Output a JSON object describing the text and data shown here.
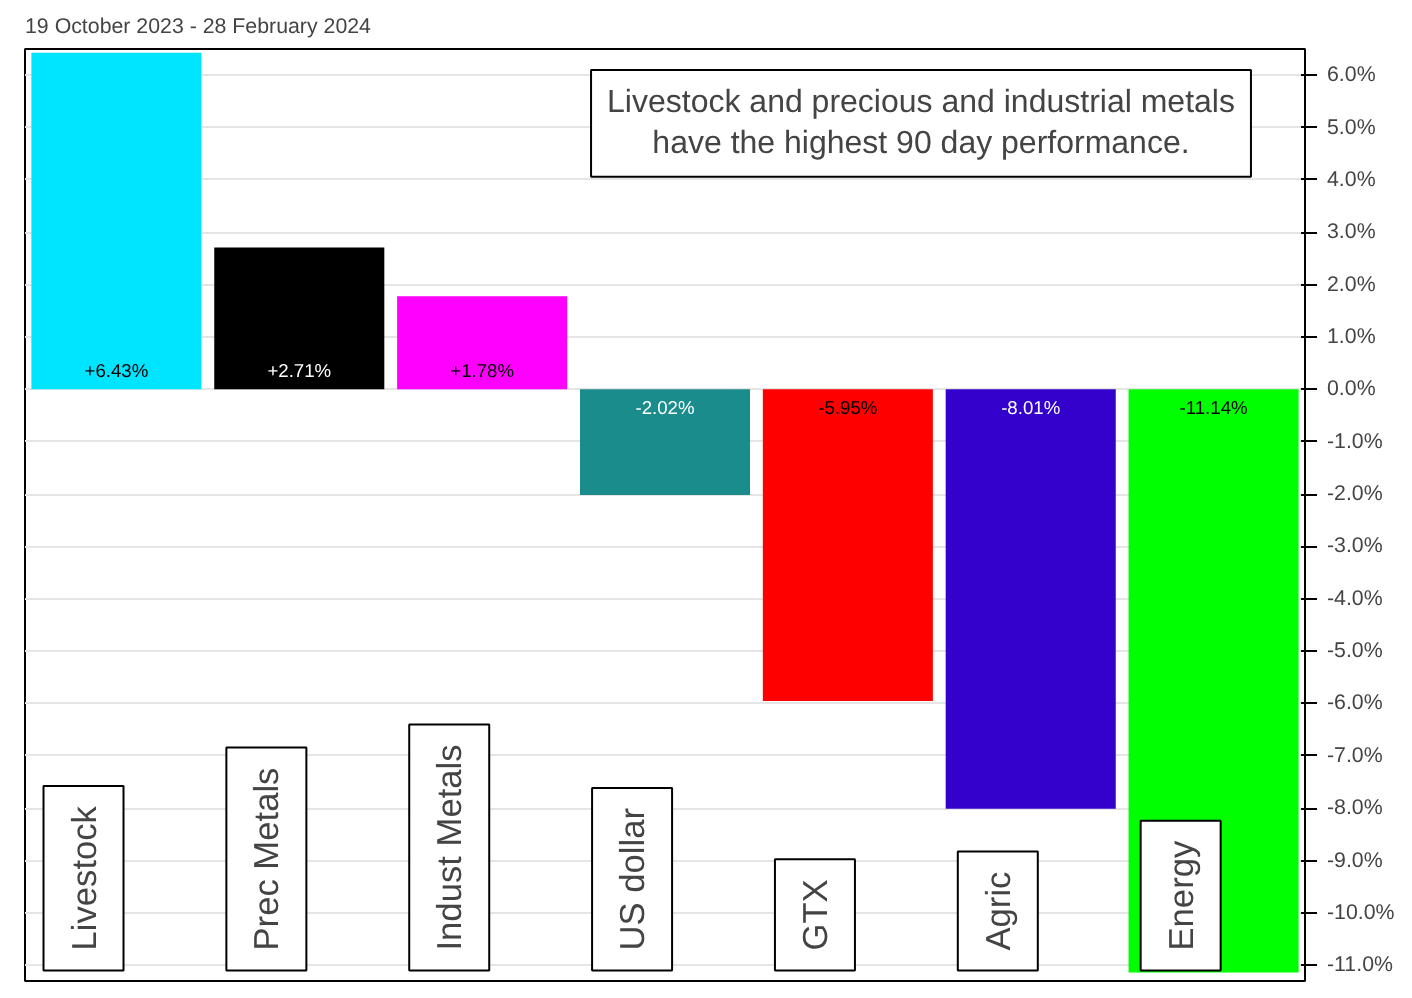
{
  "chart_data": {
    "type": "bar",
    "subtitle": "19 October 2023 - 28 February 2024",
    "categories": [
      "Livestock",
      "Prec Metals",
      "Indust Metals",
      "US dollar",
      "GTX",
      "Agric",
      "Energy"
    ],
    "values": [
      6.43,
      2.71,
      1.78,
      -2.02,
      -5.95,
      -8.01,
      -11.14
    ],
    "colors": [
      "#00e5ff",
      "#000000",
      "#ff00ff",
      "#1a8c8c",
      "#ff0000",
      "#3300cc",
      "#00ff00"
    ],
    "value_labels": [
      "+6.43%",
      "+2.71%",
      "+1.78%",
      "-2.02%",
      "-5.95%",
      "-8.01%",
      "-11.14%"
    ],
    "ylim": [
      -11.3,
      6.5
    ],
    "yticks": [
      {
        "value": 6,
        "label": "6.0%"
      },
      {
        "value": 5,
        "label": "5.0%"
      },
      {
        "value": 4,
        "label": "4.0%"
      },
      {
        "value": 3,
        "label": "3.0%"
      },
      {
        "value": 2,
        "label": "2.0%"
      },
      {
        "value": 1,
        "label": "1.0%"
      },
      {
        "value": 0,
        "label": "0.0%"
      },
      {
        "value": -1,
        "label": "-1.0%"
      },
      {
        "value": -2,
        "label": "-2.0%"
      },
      {
        "value": -3,
        "label": "-3.0%"
      },
      {
        "value": -4,
        "label": "-4.0%"
      },
      {
        "value": -5,
        "label": "-5.0%"
      },
      {
        "value": -6,
        "label": "-6.0%"
      },
      {
        "value": -7,
        "label": "-7.0%"
      },
      {
        "value": -8,
        "label": "-8.0%"
      },
      {
        "value": -9,
        "label": "-9.0%"
      },
      {
        "value": -10,
        "label": "-10.0%"
      },
      {
        "value": -11,
        "label": "-11.0%"
      }
    ],
    "grid": "y",
    "tick_labels": "y",
    "annotations": [
      "Livestock and precious and industrial metals have the highest 90 day performance."
    ]
  }
}
